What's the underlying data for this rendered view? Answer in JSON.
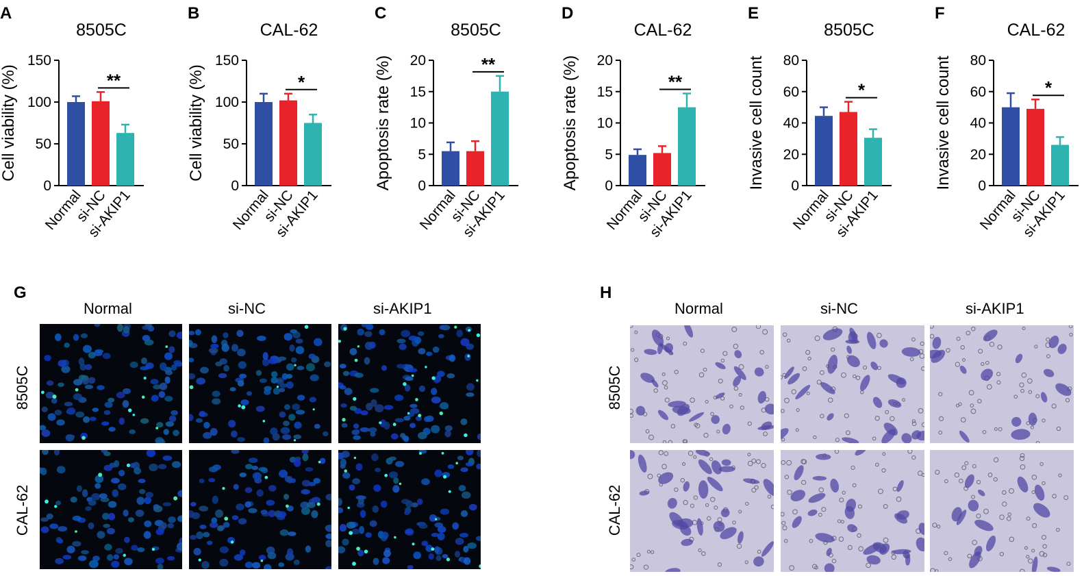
{
  "colors": {
    "normal": "#2e4fa3",
    "si_nc": "#e8232a",
    "si_akip1": "#2fb3b1"
  },
  "chart_data": [
    {
      "panel": "A",
      "type": "bar",
      "title": "8505C",
      "ylabel": "Cell viability (%)",
      "categories": [
        "Normal",
        "si-NC",
        "si-AKIP1"
      ],
      "values": [
        100,
        101,
        63
      ],
      "errors": [
        7,
        11,
        10
      ],
      "ylim": [
        0,
        150
      ],
      "yticks": [
        0,
        50,
        100,
        150
      ],
      "significance": "**"
    },
    {
      "panel": "B",
      "type": "bar",
      "title": "CAL-62",
      "ylabel": "Cell viability (%)",
      "categories": [
        "Normal",
        "si-NC",
        "si-AKIP1"
      ],
      "values": [
        100,
        102,
        75
      ],
      "errors": [
        10,
        8,
        10
      ],
      "ylim": [
        0,
        150
      ],
      "yticks": [
        0,
        50,
        100,
        150
      ],
      "significance": "*"
    },
    {
      "panel": "C",
      "type": "bar",
      "title": "8505C",
      "ylabel": "Apoptosis rate (%)",
      "categories": [
        "Normal",
        "si-NC",
        "si-AKIP1"
      ],
      "values": [
        5.5,
        5.5,
        15
      ],
      "errors": [
        1.4,
        1.6,
        2.5
      ],
      "ylim": [
        0,
        20
      ],
      "yticks": [
        0,
        5,
        10,
        15,
        20
      ],
      "significance": "**"
    },
    {
      "panel": "D",
      "type": "bar",
      "title": "CAL-62",
      "ylabel": "Apoptosis rate (%)",
      "categories": [
        "Normal",
        "si-NC",
        "si-AKIP1"
      ],
      "values": [
        4.9,
        5.2,
        12.5
      ],
      "errors": [
        0.9,
        1.1,
        2.2
      ],
      "ylim": [
        0,
        20
      ],
      "yticks": [
        0,
        5,
        10,
        15,
        20
      ],
      "significance": "**"
    },
    {
      "panel": "E",
      "type": "bar",
      "title": "8505C",
      "ylabel": "Invasive cell count",
      "categories": [
        "Normal",
        "si-NC",
        "si-AKIP1"
      ],
      "values": [
        44.5,
        47,
        30.5
      ],
      "errors": [
        5.5,
        6.5,
        5.5
      ],
      "ylim": [
        0,
        80
      ],
      "yticks": [
        0,
        20,
        40,
        60,
        80
      ],
      "significance": "*"
    },
    {
      "panel": "F",
      "type": "bar",
      "title": "CAL-62",
      "ylabel": "Invasive cell count",
      "categories": [
        "Normal",
        "si-NC",
        "si-AKIP1"
      ],
      "values": [
        50,
        49,
        26
      ],
      "errors": [
        9,
        6,
        5
      ],
      "ylim": [
        0,
        80
      ],
      "yticks": [
        0,
        20,
        40,
        60,
        80
      ],
      "significance": "*"
    }
  ],
  "micrographs": {
    "G": {
      "panel": "G",
      "columns": [
        "Normal",
        "si-NC",
        "si-AKIP1"
      ],
      "rows": [
        "8505C",
        "CAL-62"
      ]
    },
    "H": {
      "panel": "H",
      "columns": [
        "Normal",
        "si-NC",
        "si-AKIP1"
      ],
      "rows": [
        "8505C",
        "CAL-62"
      ]
    }
  }
}
